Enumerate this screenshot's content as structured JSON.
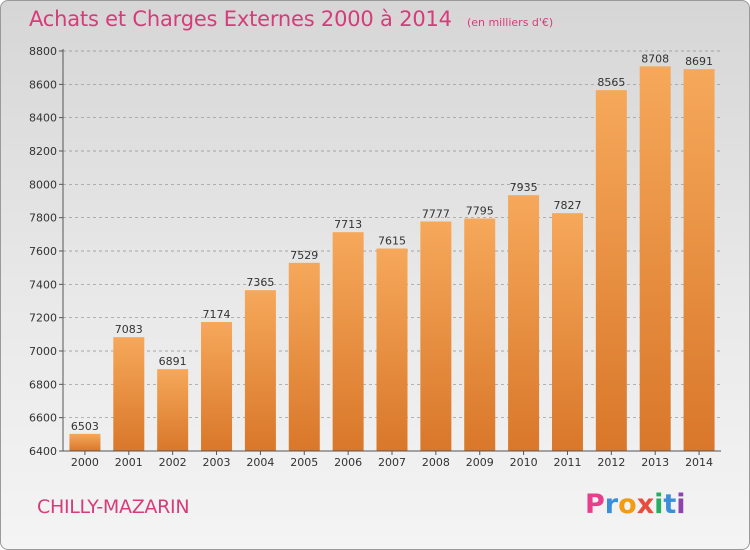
{
  "header": {
    "title": "Achats et Charges Externes 2000 à 2014",
    "unit": "(en milliers d'€)"
  },
  "footer": {
    "commune": "CHILLY-MAZARIN",
    "logo_text": "Proxiti",
    "logo_colors": [
      "#e83e8c",
      "#3a8fd9",
      "#f39c12",
      "#e74c3c",
      "#27ae60",
      "#3a8fd9",
      "#8e44ad"
    ]
  },
  "colors": {
    "bar_top": "#f6a85a",
    "bar_bottom": "#d9772a",
    "title": "#d63c7a",
    "grid": "#8f8f8f"
  },
  "chart_data": {
    "type": "bar",
    "title": "Achats et Charges Externes 2000 à 2014",
    "subtitle": "(en milliers d'€)",
    "xlabel": "",
    "ylabel": "",
    "categories": [
      "2000",
      "2001",
      "2002",
      "2003",
      "2004",
      "2005",
      "2006",
      "2007",
      "2008",
      "2009",
      "2010",
      "2011",
      "2012",
      "2013",
      "2014"
    ],
    "values": [
      6503,
      7083,
      6891,
      7174,
      7365,
      7529,
      7713,
      7615,
      7777,
      7795,
      7935,
      7827,
      8565,
      8708,
      8691
    ],
    "ylim": [
      6400,
      8800
    ],
    "yticks": [
      6400,
      6600,
      6800,
      7000,
      7200,
      7400,
      7600,
      7800,
      8000,
      8200,
      8400,
      8600,
      8800
    ],
    "grid": true,
    "grid_style": "dashed",
    "legend": "none"
  }
}
